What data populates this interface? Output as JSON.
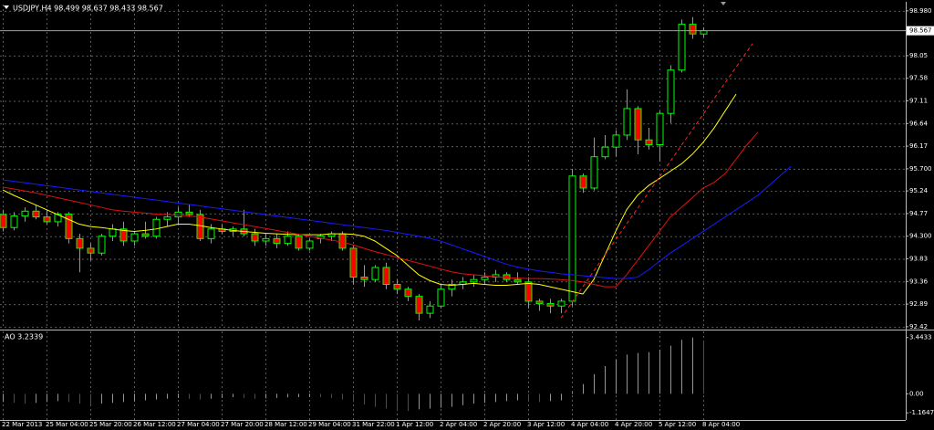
{
  "chart_data": [
    {
      "type": "candlestick",
      "title": "USDJPY,H4  98.499 98.637 98.433 98.567",
      "categories": [
        "22 Mar 2013",
        null,
        null,
        null,
        "25 Mar 04:00",
        null,
        null,
        null,
        "25 Mar 20:00",
        null,
        null,
        null,
        "26 Mar 12:00",
        null,
        null,
        null,
        "27 Mar 04:00",
        null,
        null,
        null,
        "27 Mar 20:00",
        null,
        null,
        null,
        "28 Mar 12:00",
        null,
        null,
        null,
        "29 Mar 04:00",
        null,
        null,
        null,
        "31 Mar 22:00",
        null,
        null,
        null,
        "1 Apr 12:00",
        null,
        null,
        null,
        "2 Apr 04:00",
        null,
        null,
        null,
        "2 Apr 20:00",
        null,
        null,
        null,
        "3 Apr 12:00",
        null,
        null,
        null,
        "4 Apr 04:00",
        null,
        null,
        null,
        "4 Apr 20:00",
        null,
        null,
        null,
        "5 Apr 12:00",
        null,
        null,
        null,
        "8 Apr 04:00",
        null,
        null,
        null,
        null,
        null,
        null,
        null,
        null
      ],
      "open": [
        94.75,
        94.48,
        94.72,
        94.82,
        94.7,
        94.6,
        94.76,
        94.25,
        94.05,
        93.95,
        94.3,
        94.45,
        94.2,
        94.35,
        94.3,
        94.65,
        94.7,
        94.8,
        94.75,
        94.25,
        94.45,
        94.4,
        94.45,
        94.35,
        94.2,
        94.25,
        94.15,
        94.3,
        94.05,
        94.25,
        94.3,
        94.35,
        94.05,
        93.45,
        93.4,
        93.65,
        93.3,
        93.2,
        93.05,
        92.7,
        92.85,
        93.2,
        93.3,
        93.35,
        93.4,
        93.45,
        93.5,
        93.4,
        93.35,
        92.95,
        92.9,
        92.85,
        92.95,
        95.55,
        95.3,
        95.95,
        96.15,
        96.4,
        96.95,
        96.3,
        96.2,
        96.85,
        97.75,
        98.7,
        98.499,
        null,
        null,
        null,
        null,
        null,
        null,
        null,
        null
      ],
      "high": [
        94.85,
        94.8,
        94.9,
        94.95,
        94.85,
        94.8,
        94.8,
        94.35,
        94.15,
        94.35,
        94.55,
        94.6,
        94.4,
        94.6,
        94.7,
        94.8,
        94.9,
        94.95,
        94.85,
        94.55,
        94.55,
        94.5,
        94.85,
        94.45,
        94.35,
        94.35,
        94.4,
        94.35,
        94.25,
        94.35,
        94.4,
        94.4,
        94.1,
        93.7,
        93.7,
        93.75,
        93.4,
        93.25,
        93.1,
        92.95,
        93.3,
        93.4,
        93.45,
        93.5,
        93.55,
        93.6,
        93.55,
        93.55,
        93.45,
        93.0,
        93.0,
        93.0,
        95.7,
        95.6,
        96.35,
        96.4,
        96.5,
        97.35,
        97.0,
        96.55,
        96.9,
        97.85,
        98.8,
        98.85,
        98.637,
        null,
        null,
        null,
        null,
        null,
        null,
        null,
        null
      ],
      "low": [
        94.4,
        94.42,
        94.6,
        94.65,
        94.55,
        94.5,
        94.15,
        93.55,
        93.8,
        93.9,
        94.2,
        94.1,
        94.1,
        94.25,
        94.25,
        94.5,
        94.55,
        94.7,
        94.2,
        94.15,
        94.35,
        94.3,
        94.3,
        94.1,
        94.1,
        94.05,
        94.1,
        94.0,
        94.0,
        94.15,
        94.2,
        94.0,
        93.3,
        93.25,
        93.35,
        93.2,
        93.1,
        92.95,
        92.55,
        92.6,
        92.8,
        93.05,
        93.2,
        93.25,
        93.3,
        93.35,
        93.35,
        93.3,
        92.8,
        92.75,
        92.7,
        92.7,
        92.85,
        95.2,
        95.25,
        95.9,
        95.95,
        96.3,
        96.0,
        96.1,
        95.85,
        96.65,
        97.7,
        98.4,
        98.433,
        null,
        null,
        null,
        null,
        null,
        null,
        null,
        null
      ],
      "close": [
        94.48,
        94.72,
        94.82,
        94.7,
        94.6,
        94.76,
        94.25,
        94.05,
        93.95,
        94.3,
        94.45,
        94.2,
        94.35,
        94.3,
        94.65,
        94.7,
        94.8,
        94.75,
        94.25,
        94.45,
        94.4,
        94.45,
        94.35,
        94.2,
        94.25,
        94.15,
        94.3,
        94.05,
        94.2,
        94.3,
        94.35,
        94.05,
        93.45,
        93.4,
        93.65,
        93.3,
        93.2,
        93.05,
        92.7,
        92.85,
        93.2,
        93.3,
        93.35,
        93.4,
        93.45,
        93.5,
        93.4,
        93.35,
        92.95,
        92.9,
        92.85,
        92.95,
        95.55,
        95.3,
        95.95,
        96.15,
        96.4,
        96.95,
        96.3,
        96.2,
        96.85,
        97.75,
        98.7,
        98.5,
        98.567,
        null,
        null,
        null,
        null,
        null,
        null,
        null,
        null
      ],
      "up_color": "#000000",
      "down_color": "#ff0000",
      "wick_color": "#00ff00",
      "lines": [
        {
          "color": "#ffff00",
          "values": [
            95.26,
            95.15,
            95.05,
            94.95,
            94.85,
            94.75,
            94.65,
            94.55,
            94.5,
            94.48,
            94.45,
            94.42,
            94.4,
            94.42,
            94.45,
            94.5,
            94.55,
            94.55,
            94.52,
            94.48,
            94.45,
            94.42,
            94.4,
            94.38,
            94.36,
            94.35,
            94.34,
            94.33,
            94.33,
            94.33,
            94.35,
            94.35,
            94.34,
            94.3,
            94.2,
            94.05,
            93.9,
            93.7,
            93.5,
            93.38,
            93.3,
            93.28,
            93.3,
            93.32,
            93.3,
            93.28,
            93.28,
            93.3,
            93.32,
            93.3,
            93.25,
            93.2,
            93.15,
            93.1,
            93.4,
            93.9,
            94.4,
            94.85,
            95.15,
            95.35,
            95.5,
            95.65,
            95.8,
            96.0,
            96.25,
            96.55,
            96.9,
            97.25,
            null,
            null,
            null,
            null,
            null
          ]
        },
        {
          "color": "#e01010",
          "values": [
            95.32,
            95.28,
            95.24,
            95.2,
            95.15,
            95.1,
            95.05,
            95.0,
            94.95,
            94.9,
            94.85,
            94.82,
            94.8,
            94.78,
            94.76,
            94.75,
            94.74,
            94.72,
            94.7,
            94.66,
            94.62,
            94.58,
            94.54,
            94.5,
            94.46,
            94.42,
            94.38,
            94.34,
            94.3,
            94.26,
            94.22,
            94.18,
            94.12,
            94.05,
            93.98,
            93.92,
            93.86,
            93.8,
            93.74,
            93.68,
            93.62,
            93.56,
            93.52,
            93.5,
            93.48,
            93.46,
            93.44,
            93.43,
            93.42,
            93.42,
            93.41,
            93.4,
            93.38,
            93.35,
            93.3,
            93.25,
            93.25,
            93.5,
            93.8,
            94.1,
            94.4,
            94.7,
            94.9,
            95.1,
            95.3,
            95.42,
            95.6,
            95.9,
            96.2,
            96.46,
            null,
            null,
            null
          ]
        },
        {
          "color": "#1a1aff",
          "values": [
            95.47,
            95.44,
            95.41,
            95.38,
            95.35,
            95.32,
            95.29,
            95.26,
            95.23,
            95.2,
            95.17,
            95.14,
            95.11,
            95.08,
            95.05,
            95.02,
            94.99,
            94.96,
            94.93,
            94.9,
            94.87,
            94.84,
            94.81,
            94.78,
            94.75,
            94.72,
            94.69,
            94.66,
            94.63,
            94.6,
            94.57,
            94.54,
            94.51,
            94.48,
            94.45,
            94.42,
            94.38,
            94.34,
            94.3,
            94.26,
            94.2,
            94.12,
            94.04,
            93.96,
            93.88,
            93.8,
            93.72,
            93.66,
            93.62,
            93.58,
            93.55,
            93.52,
            93.5,
            93.48,
            93.46,
            93.44,
            93.42,
            93.42,
            93.45,
            93.6,
            93.78,
            93.95,
            94.1,
            94.25,
            94.4,
            94.55,
            94.7,
            94.85,
            95.0,
            95.15,
            95.35,
            95.55,
            95.75
          ]
        },
        {
          "color": "#ff2020",
          "dashed": true,
          "x": [
            51,
            68.5
          ],
          "values": [
            92.6,
            98.3
          ]
        }
      ],
      "current_price": {
        "value": 98.567,
        "label": "98.567"
      },
      "ylim": [
        92.38,
        99.11
      ],
      "yticks": [
        {
          "value": 98.98,
          "label": "98.980"
        },
        98.05,
        97.58,
        97.11,
        96.64,
        96.17,
        {
          "value": 95.7,
          "label": "95.700"
        },
        95.24,
        94.77,
        {
          "value": 94.3,
          "label": "94.300"
        },
        93.83,
        93.36,
        92.89,
        92.42
      ],
      "grid": true
    },
    {
      "type": "bar",
      "title": "AO 3.2339",
      "values": [
        -0.5,
        -0.55,
        -0.6,
        -0.55,
        -0.5,
        -0.45,
        -0.5,
        -0.6,
        -0.65,
        -0.6,
        -0.55,
        -0.5,
        -0.45,
        -0.4,
        -0.35,
        -0.3,
        -0.25,
        -0.3,
        -0.35,
        -0.3,
        -0.25,
        -0.2,
        -0.25,
        -0.3,
        -0.28,
        -0.25,
        -0.22,
        -0.2,
        -0.18,
        -0.2,
        -0.25,
        -0.35,
        -0.5,
        -0.65,
        -0.8,
        -0.9,
        -1.0,
        -1.05,
        -0.95,
        -0.9,
        -0.85,
        -0.8,
        -0.7,
        -0.6,
        -0.55,
        -0.5,
        -0.45,
        -0.4,
        -0.45,
        -0.5,
        -0.45,
        -0.4,
        0.1,
        0.6,
        1.2,
        1.7,
        2.1,
        2.4,
        2.5,
        2.55,
        2.7,
        2.95,
        3.3,
        3.44,
        3.2339
      ],
      "up_color": "#00ff00",
      "down_color": "#ff0000",
      "ylim": [
        -1.6,
        3.82
      ],
      "yticks": [
        3.4433,
        {
          "value": 0,
          "label": "0.00"
        },
        -1.1647
      ]
    }
  ]
}
